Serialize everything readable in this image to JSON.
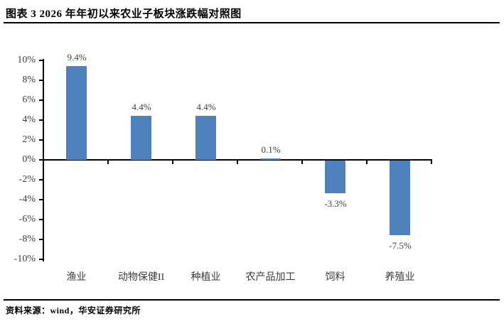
{
  "header": {
    "title": "图表 3 2026 年年初以来农业子板块涨跌幅对照图"
  },
  "chart_data": {
    "type": "bar",
    "categories": [
      "渔业",
      "动物保健II",
      "种植业",
      "农产品加工",
      "饲料",
      "养殖业"
    ],
    "values": [
      9.4,
      4.4,
      4.4,
      0.1,
      -3.3,
      -7.5
    ],
    "value_labels": [
      "9.4%",
      "4.4%",
      "4.4%",
      "0.1%",
      "-3.3%",
      "-7.5%"
    ],
    "title": "",
    "xlabel": "",
    "ylabel": "",
    "ylim": [
      -10,
      10
    ],
    "ytick_step": 2,
    "ytick_labels": [
      "10%",
      "8%",
      "6%",
      "4%",
      "2%",
      "0%",
      "-2%",
      "-4%",
      "-6%",
      "-8%",
      "-10%"
    ],
    "bar_color": "#4F81BD",
    "axis_color": "#000000",
    "label_color": "#404040",
    "grid": false,
    "legend_position": "none"
  },
  "footer": {
    "source": "资料来源：wind，华安证券研究所"
  }
}
